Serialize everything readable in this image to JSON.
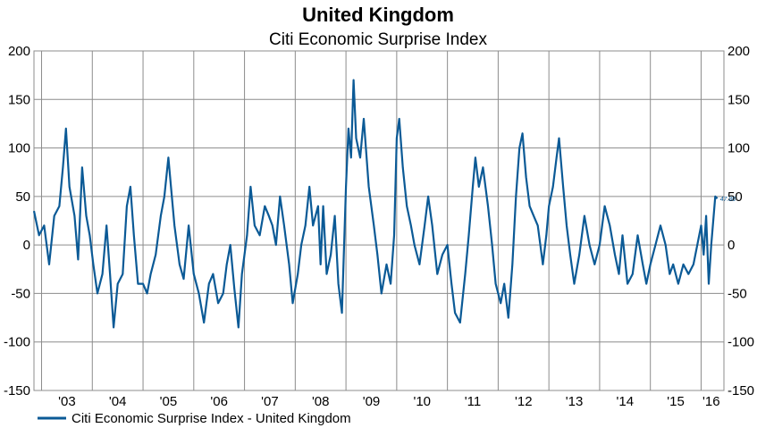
{
  "chart_data": {
    "type": "line",
    "title": "United Kingdom",
    "subtitle": "Citi Economic Surprise Index",
    "ylim": [
      -150,
      200
    ],
    "yticks": [
      200,
      150,
      100,
      50,
      0,
      -50,
      -100,
      -150
    ],
    "ytick_labels": [
      "200",
      "150",
      "100",
      "50",
      "0",
      "-50",
      "-100",
      "-150"
    ],
    "xlim": [
      2002.85,
      2016.45
    ],
    "xgrid": [
      2003,
      2004,
      2005,
      2006,
      2007,
      2008,
      2009,
      2010,
      2011,
      2012,
      2013,
      2014,
      2015,
      2016
    ],
    "xtick_positions": [
      2003.5,
      2004.5,
      2005.5,
      2006.5,
      2007.5,
      2008.5,
      2009.5,
      2010.5,
      2011.5,
      2012.5,
      2013.5,
      2014.5,
      2015.5,
      2016.2
    ],
    "xtick_labels": [
      "'03",
      "'04",
      "'05",
      "'06",
      "'07",
      "'08",
      "'09",
      "'10",
      "'11",
      "'12",
      "'13",
      "'14",
      "'15",
      "'16"
    ],
    "grid": true,
    "legend_position": "bottom-left",
    "last_value_label": "47.80",
    "series": [
      {
        "name": "Citi Economic Surprise Index - United Kingdom",
        "color": "#0b5a96",
        "points": [
          [
            2002.85,
            35
          ],
          [
            2002.95,
            10
          ],
          [
            2003.05,
            20
          ],
          [
            2003.15,
            -20
          ],
          [
            2003.25,
            30
          ],
          [
            2003.35,
            40
          ],
          [
            2003.42,
            80
          ],
          [
            2003.48,
            120
          ],
          [
            2003.55,
            60
          ],
          [
            2003.65,
            30
          ],
          [
            2003.72,
            -15
          ],
          [
            2003.8,
            80
          ],
          [
            2003.88,
            30
          ],
          [
            2003.95,
            10
          ],
          [
            2004.02,
            -20
          ],
          [
            2004.1,
            -50
          ],
          [
            2004.2,
            -30
          ],
          [
            2004.28,
            20
          ],
          [
            2004.35,
            -30
          ],
          [
            2004.42,
            -85
          ],
          [
            2004.5,
            -40
          ],
          [
            2004.6,
            -30
          ],
          [
            2004.68,
            40
          ],
          [
            2004.75,
            60
          ],
          [
            2004.82,
            10
          ],
          [
            2004.9,
            -40
          ],
          [
            2005.0,
            -40
          ],
          [
            2005.08,
            -50
          ],
          [
            2005.15,
            -30
          ],
          [
            2005.25,
            -10
          ],
          [
            2005.35,
            30
          ],
          [
            2005.42,
            50
          ],
          [
            2005.5,
            90
          ],
          [
            2005.55,
            60
          ],
          [
            2005.62,
            20
          ],
          [
            2005.72,
            -20
          ],
          [
            2005.8,
            -35
          ],
          [
            2005.9,
            20
          ],
          [
            2006.0,
            -30
          ],
          [
            2006.1,
            -50
          ],
          [
            2006.2,
            -80
          ],
          [
            2006.3,
            -40
          ],
          [
            2006.38,
            -30
          ],
          [
            2006.48,
            -60
          ],
          [
            2006.58,
            -50
          ],
          [
            2006.65,
            -20
          ],
          [
            2006.72,
            0
          ],
          [
            2006.8,
            -45
          ],
          [
            2006.88,
            -85
          ],
          [
            2006.95,
            -30
          ],
          [
            2007.05,
            10
          ],
          [
            2007.12,
            60
          ],
          [
            2007.2,
            20
          ],
          [
            2007.3,
            10
          ],
          [
            2007.4,
            40
          ],
          [
            2007.48,
            30
          ],
          [
            2007.55,
            20
          ],
          [
            2007.62,
            0
          ],
          [
            2007.7,
            50
          ],
          [
            2007.78,
            20
          ],
          [
            2007.88,
            -20
          ],
          [
            2007.95,
            -60
          ],
          [
            2008.05,
            -30
          ],
          [
            2008.12,
            0
          ],
          [
            2008.2,
            20
          ],
          [
            2008.28,
            60
          ],
          [
            2008.35,
            20
          ],
          [
            2008.45,
            40
          ],
          [
            2008.5,
            -20
          ],
          [
            2008.55,
            40
          ],
          [
            2008.62,
            -30
          ],
          [
            2008.7,
            -10
          ],
          [
            2008.78,
            30
          ],
          [
            2008.85,
            -40
          ],
          [
            2008.92,
            -70
          ],
          [
            2009.0,
            60
          ],
          [
            2009.05,
            120
          ],
          [
            2009.1,
            90
          ],
          [
            2009.15,
            170
          ],
          [
            2009.2,
            110
          ],
          [
            2009.28,
            90
          ],
          [
            2009.35,
            130
          ],
          [
            2009.45,
            60
          ],
          [
            2009.55,
            20
          ],
          [
            2009.62,
            -10
          ],
          [
            2009.7,
            -50
          ],
          [
            2009.8,
            -20
          ],
          [
            2009.88,
            -40
          ],
          [
            2009.95,
            10
          ],
          [
            2010.0,
            110
          ],
          [
            2010.05,
            130
          ],
          [
            2010.12,
            80
          ],
          [
            2010.2,
            40
          ],
          [
            2010.28,
            20
          ],
          [
            2010.35,
            0
          ],
          [
            2010.45,
            -20
          ],
          [
            2010.55,
            20
          ],
          [
            2010.62,
            50
          ],
          [
            2010.7,
            20
          ],
          [
            2010.8,
            -30
          ],
          [
            2010.9,
            -10
          ],
          [
            2011.0,
            0
          ],
          [
            2011.08,
            -40
          ],
          [
            2011.15,
            -70
          ],
          [
            2011.25,
            -80
          ],
          [
            2011.35,
            -30
          ],
          [
            2011.42,
            10
          ],
          [
            2011.5,
            60
          ],
          [
            2011.55,
            90
          ],
          [
            2011.62,
            60
          ],
          [
            2011.7,
            80
          ],
          [
            2011.8,
            40
          ],
          [
            2011.88,
            0
          ],
          [
            2011.95,
            -40
          ],
          [
            2012.05,
            -60
          ],
          [
            2012.12,
            -40
          ],
          [
            2012.2,
            -75
          ],
          [
            2012.28,
            -20
          ],
          [
            2012.35,
            50
          ],
          [
            2012.42,
            100
          ],
          [
            2012.48,
            115
          ],
          [
            2012.55,
            70
          ],
          [
            2012.62,
            40
          ],
          [
            2012.7,
            30
          ],
          [
            2012.78,
            20
          ],
          [
            2012.88,
            -20
          ],
          [
            2012.95,
            10
          ],
          [
            2013.0,
            40
          ],
          [
            2013.08,
            60
          ],
          [
            2013.15,
            90
          ],
          [
            2013.2,
            110
          ],
          [
            2013.28,
            60
          ],
          [
            2013.35,
            20
          ],
          [
            2013.42,
            -10
          ],
          [
            2013.5,
            -40
          ],
          [
            2013.6,
            -10
          ],
          [
            2013.7,
            30
          ],
          [
            2013.8,
            0
          ],
          [
            2013.9,
            -20
          ],
          [
            2014.0,
            0
          ],
          [
            2014.1,
            40
          ],
          [
            2014.2,
            20
          ],
          [
            2014.3,
            -10
          ],
          [
            2014.38,
            -30
          ],
          [
            2014.45,
            10
          ],
          [
            2014.55,
            -40
          ],
          [
            2014.65,
            -30
          ],
          [
            2014.75,
            10
          ],
          [
            2014.85,
            -20
          ],
          [
            2014.92,
            -40
          ],
          [
            2015.0,
            -20
          ],
          [
            2015.1,
            0
          ],
          [
            2015.2,
            20
          ],
          [
            2015.3,
            0
          ],
          [
            2015.38,
            -30
          ],
          [
            2015.45,
            -20
          ],
          [
            2015.55,
            -40
          ],
          [
            2015.65,
            -20
          ],
          [
            2015.75,
            -30
          ],
          [
            2015.85,
            -20
          ],
          [
            2016.0,
            20
          ],
          [
            2016.05,
            -10
          ],
          [
            2016.1,
            30
          ],
          [
            2016.15,
            -40
          ],
          [
            2016.2,
            0
          ],
          [
            2016.28,
            50
          ],
          [
            2016.32,
            47.8
          ]
        ]
      }
    ]
  }
}
